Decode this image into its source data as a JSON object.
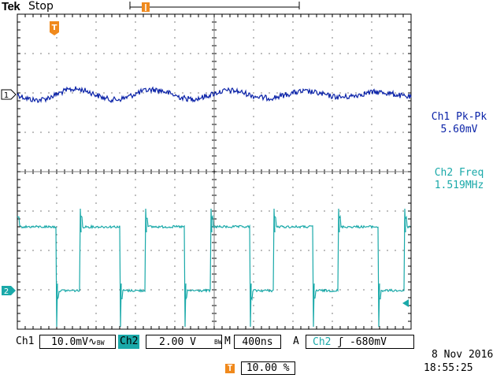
{
  "header": {
    "brand": "Tek",
    "run_state": "Stop",
    "trigger_marker_icon": "trigger-position-marker-icon"
  },
  "channels": {
    "ch1": {
      "marker": "1",
      "color": "#0b23a8"
    },
    "ch2": {
      "marker": "2",
      "color": "#1aa9a9"
    }
  },
  "trigger_marker": "T",
  "measurements": [
    {
      "label": "Ch1 Pk-Pk",
      "value": "5.60mV",
      "color": "#0b23a8"
    },
    {
      "label": "Ch2 Freq",
      "value": "1.519MHz",
      "color": "#1aa9a9"
    }
  ],
  "status": {
    "ch1_label": "Ch1",
    "ch1_scale": "10.0mV",
    "ch1_coupling": "∿",
    "ch1_bw": "BW",
    "ch2_label": "Ch2",
    "ch2_scale": "2.00 V",
    "ch2_bw": "BW",
    "timebase_label": "M",
    "timebase": "400ns",
    "acq_label": "A",
    "trig_source": "Ch2",
    "trig_slope": "ʃ",
    "trig_level": "-680mV"
  },
  "footer": {
    "trigger_position_label": "T",
    "trigger_position": "10.00 %",
    "date": "8 Nov 2016",
    "time": "18:55:25"
  }
}
